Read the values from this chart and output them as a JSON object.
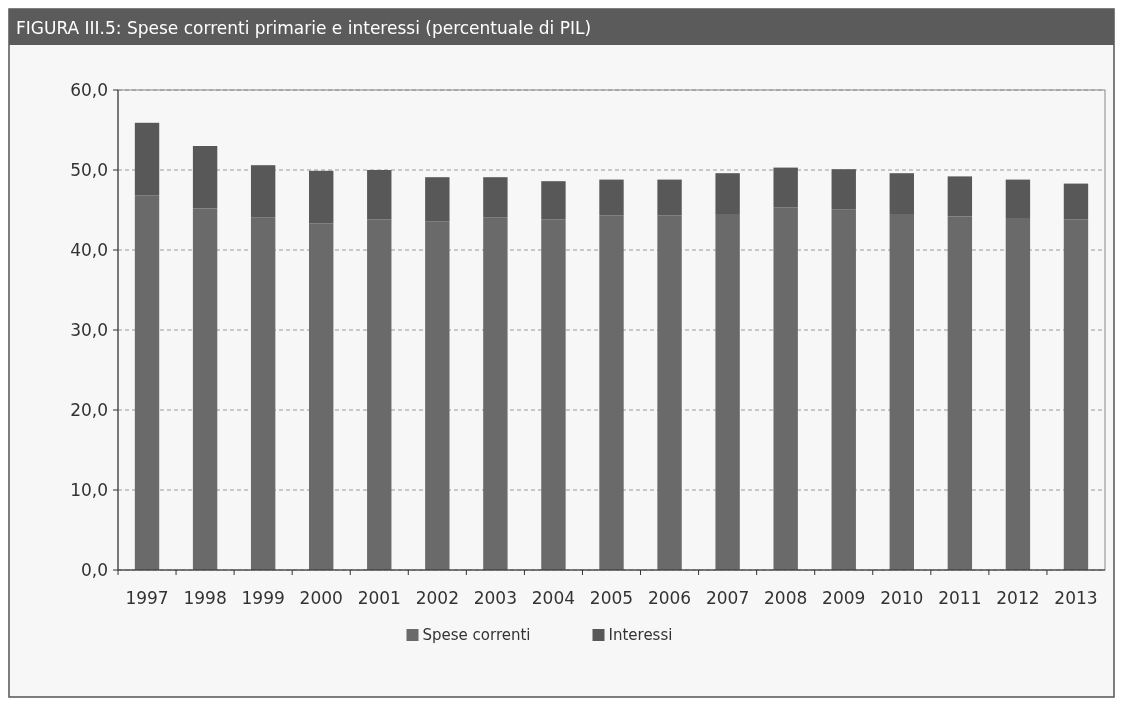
{
  "chart_data": {
    "type": "bar",
    "title": "FIGURA III.5: Spese correnti primarie e interessi (percentuale di PIL)",
    "categories": [
      "1997",
      "1998",
      "1999",
      "2000",
      "2001",
      "2002",
      "2003",
      "2004",
      "2005",
      "2006",
      "2007",
      "2008",
      "2009",
      "2010",
      "2011",
      "2012",
      "2013"
    ],
    "series": [
      {
        "name": "Spese correnti",
        "color": "#6a6a6a",
        "values": [
          46.8,
          45.2,
          44.1,
          43.3,
          43.8,
          43.6,
          44.1,
          43.8,
          44.3,
          44.3,
          44.5,
          45.3,
          45.1,
          44.5,
          44.2,
          44.0,
          43.8
        ]
      },
      {
        "name": "Interessi",
        "color": "#585858",
        "values": [
          9.1,
          7.8,
          6.5,
          6.6,
          6.2,
          5.5,
          5.0,
          4.8,
          4.5,
          4.5,
          5.1,
          5.0,
          5.0,
          5.1,
          5.0,
          4.8,
          4.5
        ]
      }
    ],
    "stacked": true,
    "ylim": [
      0,
      60
    ],
    "yticks": [
      {
        "value": 0,
        "label": "0,0"
      },
      {
        "value": 10,
        "label": "10,0"
      },
      {
        "value": 20,
        "label": "20,0"
      },
      {
        "value": 30,
        "label": "30,0"
      },
      {
        "value": 40,
        "label": "40,0"
      },
      {
        "value": 50,
        "label": "50,0"
      },
      {
        "value": 60,
        "label": "60,0"
      }
    ],
    "grid": "y",
    "legend": "bottom"
  }
}
